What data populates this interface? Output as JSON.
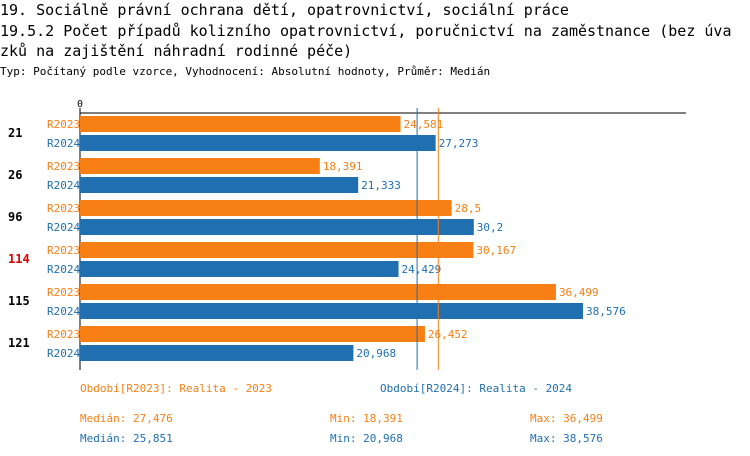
{
  "header": {
    "line1": "19. Sociálně právní ochrana dětí, opatrovnictví, sociální práce",
    "line2": "19.5.2 Počet případů kolizního opatrovnictví, poručnictví na zaměstnance (bez úva",
    "line3": "zků na zajištění náhradní rodinné péče)",
    "subtitle": "Typ: Počítaný podle vzorce, Vyhodnocení: Absolutní hodnoty, Průměr: Medián"
  },
  "colors": {
    "r2023": "#f77f14",
    "r2024": "#1f6fb1",
    "highlight": "#e00000"
  },
  "chart_data": {
    "type": "bar",
    "orientation": "horizontal",
    "title": "19.5.2 Počet případů kolizního opatrovnictví, poručnictví na zaměstnance",
    "axis_zero_label": "0",
    "xlim": [
      0,
      40
    ],
    "categories": [
      "21",
      "26",
      "96",
      "114",
      "115",
      "121"
    ],
    "highlight_category": "114",
    "series": [
      {
        "name": "R2023",
        "values": [
          24.581,
          18.391,
          28.5,
          30.167,
          36.499,
          26.452
        ],
        "labels": [
          "24,581",
          "18,391",
          "28,5",
          "30,167",
          "36,499",
          "26,452"
        ]
      },
      {
        "name": "R2024",
        "values": [
          27.273,
          21.333,
          30.2,
          24.429,
          38.576,
          20.968
        ],
        "labels": [
          "27,273",
          "21,333",
          "30,2",
          "24,429",
          "38,576",
          "20,968"
        ]
      }
    ],
    "reference_lines": [
      {
        "series": "R2023",
        "stat": "median",
        "value": 27.476
      },
      {
        "series": "R2024",
        "stat": "median",
        "value": 25.851
      }
    ]
  },
  "legend": {
    "r2023": "Období[R2023]: Realita - 2023",
    "r2024": "Období[R2024]: Realita - 2024"
  },
  "stats": {
    "r2023": {
      "median": "Medián: 27,476",
      "min": "Min: 18,391",
      "max": "Max: 36,499"
    },
    "r2024": {
      "median": "Medián: 25,851",
      "min": "Min: 20,968",
      "max": "Max: 38,576"
    }
  }
}
